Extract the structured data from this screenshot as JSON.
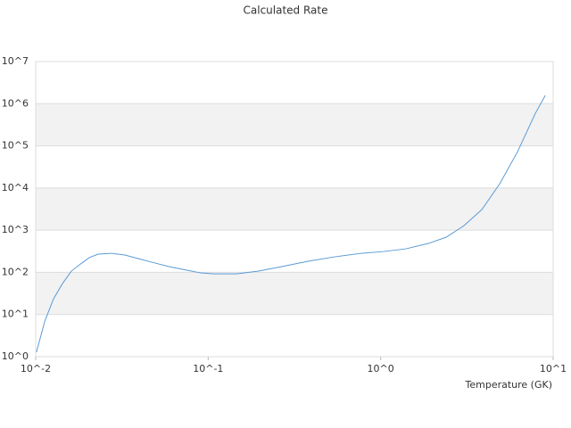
{
  "chart_data": {
    "type": "line",
    "title": "Calculated Rate",
    "x_label": "Temperature (GK)",
    "xscale": "log",
    "yscale": "log",
    "grid": true,
    "band_color": "#f2f2f2",
    "xlim": [
      0.01,
      10
    ],
    "ylim": [
      1,
      10000000
    ],
    "xticks": [
      {
        "value": 0.01,
        "label": "10^-2"
      },
      {
        "value": 0.1,
        "label": "10^-1"
      },
      {
        "value": 1,
        "label": "10^0"
      },
      {
        "value": 10,
        "label": "10^1"
      }
    ],
    "yticks": [
      {
        "value": 1,
        "label": "10^0"
      },
      {
        "value": 10,
        "label": "10^1"
      },
      {
        "value": 100,
        "label": "10^2"
      },
      {
        "value": 1000,
        "label": "10^3"
      },
      {
        "value": 10000,
        "label": "10^4"
      },
      {
        "value": 100000,
        "label": "10^5"
      },
      {
        "value": 1000000,
        "label": "10^6"
      },
      {
        "value": 10000000,
        "label": "10^7"
      }
    ],
    "x": [
      0.0101,
      0.0113,
      0.0127,
      0.0143,
      0.0161,
      0.0182,
      0.0204,
      0.023,
      0.0275,
      0.0329,
      0.0393,
      0.0471,
      0.0597,
      0.0757,
      0.0905,
      0.108,
      0.146,
      0.196,
      0.265,
      0.379,
      0.541,
      0.773,
      1.04,
      1.4,
      1.89,
      2.4,
      3.04,
      3.86,
      4.9,
      6.22,
      7.89,
      9.0
    ],
    "series": [
      {
        "color": "#5b9bd5",
        "values": [
          1.28,
          7.0,
          23.7,
          54,
          107,
          158,
          222,
          270,
          283,
          257,
          212,
          174,
          136,
          112,
          97,
          92,
          92,
          107,
          136,
          183,
          233,
          283,
          312,
          361,
          484,
          681,
          1280,
          3080,
          12600,
          72900,
          592000,
          1570000
        ]
      }
    ]
  }
}
